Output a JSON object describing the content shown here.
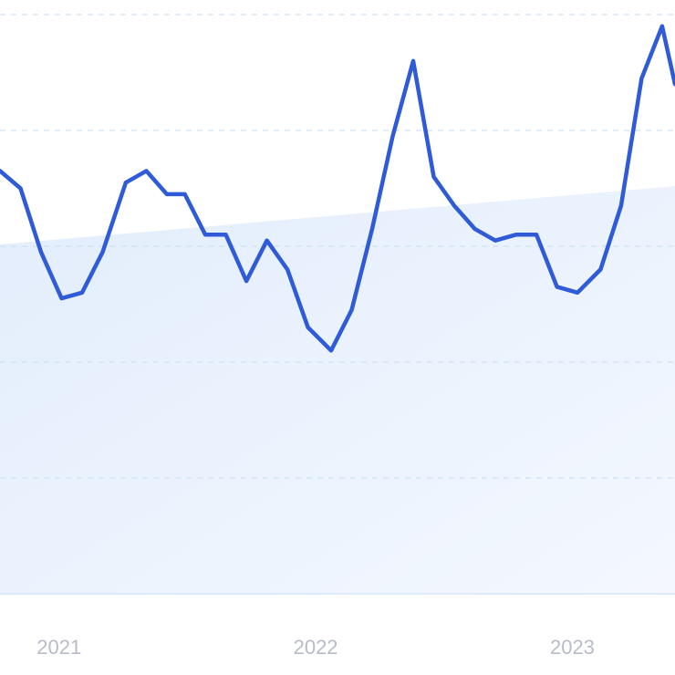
{
  "chart_data": {
    "type": "line",
    "title": "",
    "xlabel": "",
    "ylabel": "",
    "x_tick_labels": [
      "2021",
      "2022",
      "2023"
    ],
    "x_tick_positions": [
      2021,
      2022,
      2023
    ],
    "xlim": [
      2020.77,
      2023.4
    ],
    "ylim": [
      0,
      100
    ],
    "grid": true,
    "series": [
      {
        "x": [
          2020.77,
          2020.85,
          2020.93,
          2021.01,
          2021.09,
          2021.17,
          2021.26,
          2021.34,
          2021.42,
          2021.49,
          2021.57,
          2021.65,
          2021.73,
          2021.81,
          2021.89,
          2021.97,
          2022.06,
          2022.14,
          2022.22,
          2022.3,
          2022.38,
          2022.46,
          2022.54,
          2022.62,
          2022.7,
          2022.78,
          2022.86,
          2022.94,
          2023.02,
          2023.11,
          2023.19,
          2023.27,
          2023.35,
          2023.4
        ],
        "y": [
          73,
          70,
          59,
          51,
          52,
          59,
          71,
          73,
          69,
          69,
          62,
          62,
          54,
          61,
          56,
          46,
          42,
          49,
          63,
          79,
          92,
          72,
          67,
          63,
          61,
          62,
          62,
          53,
          52,
          56,
          67,
          89,
          98,
          88
        ]
      }
    ],
    "colors": {
      "line": "#2f5ad8",
      "area": "#e3eefc",
      "grid": "#cfe2f3",
      "ticks": "#b8bcc8"
    }
  }
}
